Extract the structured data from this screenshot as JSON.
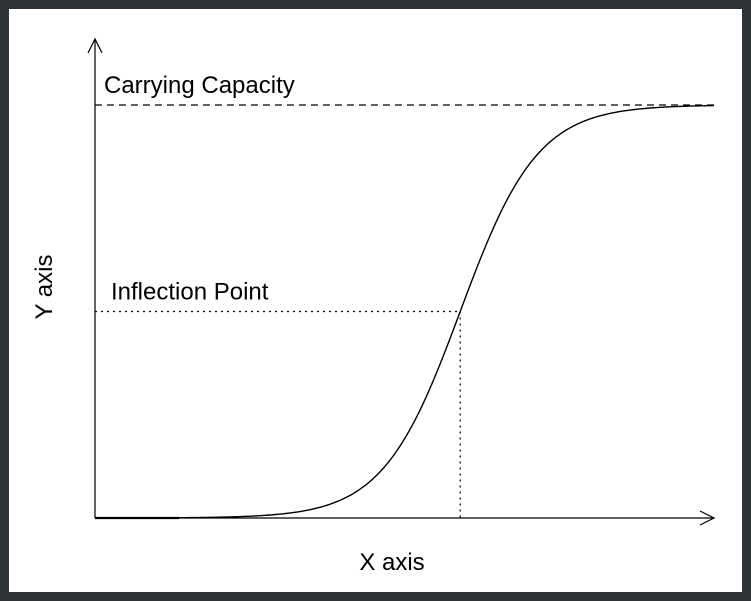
{
  "colors": {
    "background_frame": "#2f3437",
    "canvas": "#ffffff",
    "ink": "#000000"
  },
  "chart_data": {
    "type": "line",
    "curve": "logistic",
    "xlabel": "X axis",
    "ylabel": "Y axis",
    "grid": false,
    "legend": "none",
    "annotations": {
      "carrying_capacity": {
        "label": "Carrying Capacity",
        "line_style": "dashed",
        "y_value": 1.0
      },
      "inflection_point": {
        "label": "Inflection Point",
        "line_style": "dotted",
        "x_value": 0.59,
        "y_value": 0.5
      }
    },
    "logistic": {
      "capacity": 1.0,
      "midpoint": 0.59,
      "steepness": 16
    },
    "xlim": [
      0,
      1
    ],
    "ylim": [
      0,
      1.0
    ]
  }
}
